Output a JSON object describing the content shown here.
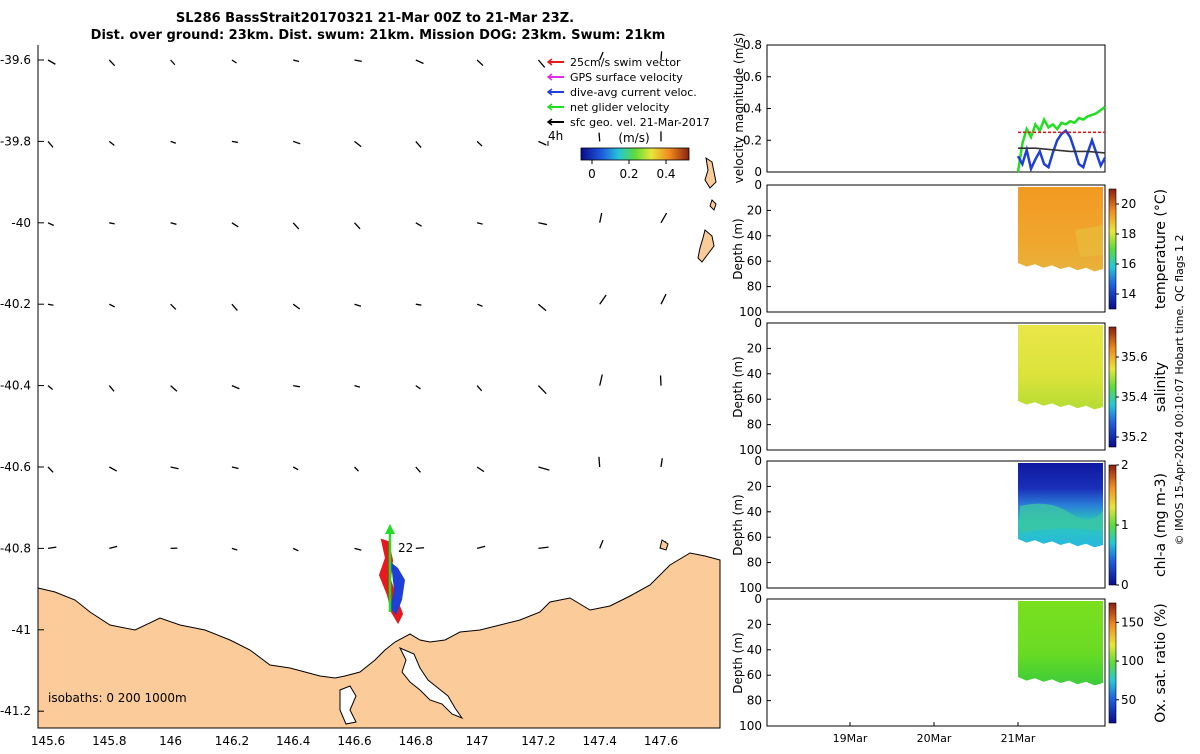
{
  "header": {
    "line1": "SL286 BassStrait20170321 21-Mar 00Z to 21-Mar 23Z.",
    "line2": "Dist. over ground: 23km. Dist. swum: 21km. Mission DOG: 23km. Swum: 21km"
  },
  "map": {
    "legend": [
      {
        "label": "25cm/s swim vector",
        "color": "#e41a1c"
      },
      {
        "label": "GPS surface velocity",
        "color": "#e22ee2"
      },
      {
        "label": "dive-avg current veloc.",
        "color": "#1f3fd6"
      },
      {
        "label": "net glider velocity",
        "color": "#22dd22"
      },
      {
        "label": "sfc geo. vel. 21-Mar-2017",
        "color": "#000000"
      }
    ],
    "vector_scale_label": "4h",
    "colorbar_unit": "(m/s)",
    "colorbar_ticks": [
      "0",
      "0.2",
      "0.4"
    ],
    "glider_label": "22",
    "isobaths_text": "isobaths: 0   200  1000m",
    "land_color": "#fbcb9a",
    "lon_ticks": [
      "145.6",
      "145.8",
      "146",
      "146.2",
      "146.4",
      "146.6",
      "146.8",
      "147",
      "147.2",
      "147.4",
      "147.6"
    ],
    "lat_ticks": [
      "-39.6",
      "-39.8",
      "-40",
      "-40.2",
      "-40.4",
      "-40.6",
      "-40.8",
      "-41",
      "-41.2"
    ]
  },
  "right_panels": {
    "time_ticks": [
      "19Mar",
      "20Mar",
      "21Mar"
    ],
    "depth_label": "Depth (m)",
    "depth_ticks": [
      "0",
      "20",
      "40",
      "60",
      "80",
      "100"
    ],
    "credit": "© IMOS 15-Apr-2024 00:10:07 Hobart time. QC flags 1  2"
  },
  "chart_data": [
    {
      "type": "line",
      "ylabel": "velocity magnitude (m/s)",
      "yticks": [
        "0",
        "0.2",
        "0.4",
        "0.6",
        "0.8"
      ],
      "ylim": [
        0,
        0.8
      ],
      "series": [
        {
          "color": "#22dd22",
          "x": [
            0,
            0.05,
            0.1,
            0.15,
            0.2,
            0.25,
            0.3,
            0.35,
            0.4,
            0.45,
            0.5,
            0.55,
            0.6,
            0.65,
            0.7,
            0.75,
            0.8,
            0.85,
            0.9,
            0.95,
            1.0
          ],
          "values": [
            0.0,
            0.18,
            0.27,
            0.22,
            0.3,
            0.26,
            0.33,
            0.28,
            0.3,
            0.27,
            0.31,
            0.3,
            0.32,
            0.31,
            0.34,
            0.33,
            0.35,
            0.36,
            0.37,
            0.39,
            0.41
          ]
        },
        {
          "color": "#1f3fd6",
          "x": [
            0,
            0.05,
            0.1,
            0.15,
            0.2,
            0.25,
            0.3,
            0.35,
            0.4,
            0.45,
            0.5,
            0.55,
            0.6,
            0.65,
            0.7,
            0.75,
            0.8,
            0.85,
            0.9,
            0.95,
            1.0
          ],
          "values": [
            0.1,
            0.05,
            0.14,
            0.02,
            0.08,
            0.13,
            0.05,
            0.03,
            0.12,
            0.2,
            0.24,
            0.26,
            0.22,
            0.14,
            0.05,
            0.03,
            0.12,
            0.2,
            0.12,
            0.04,
            0.09
          ]
        },
        {
          "color": "#e41a1c",
          "x": [
            0,
            1.0
          ],
          "values": [
            0.25,
            0.25
          ]
        },
        {
          "color": "#333333",
          "x": [
            0,
            0.2,
            0.4,
            0.6,
            0.8,
            1.0
          ],
          "values": [
            0.15,
            0.15,
            0.14,
            0.13,
            0.13,
            0.12
          ]
        }
      ]
    },
    {
      "type": "heatmap",
      "ylabel": "temperature (°C)",
      "colorbar_ticks": [
        "20",
        "18",
        "16",
        "14"
      ],
      "range": [
        13,
        21
      ]
    },
    {
      "type": "heatmap",
      "ylabel": "salinity",
      "colorbar_ticks": [
        "35.6",
        "35.4",
        "35.2"
      ],
      "range": [
        35.15,
        35.75
      ]
    },
    {
      "type": "heatmap",
      "ylabel": "chl-a (mg m-3)",
      "colorbar_ticks": [
        "2",
        "1",
        "0"
      ],
      "range": [
        0,
        2
      ]
    },
    {
      "type": "heatmap",
      "ylabel": "Ox. sat. ratio (%)",
      "colorbar_ticks": [
        "150",
        "100",
        "50"
      ],
      "range": [
        20,
        175
      ]
    }
  ]
}
